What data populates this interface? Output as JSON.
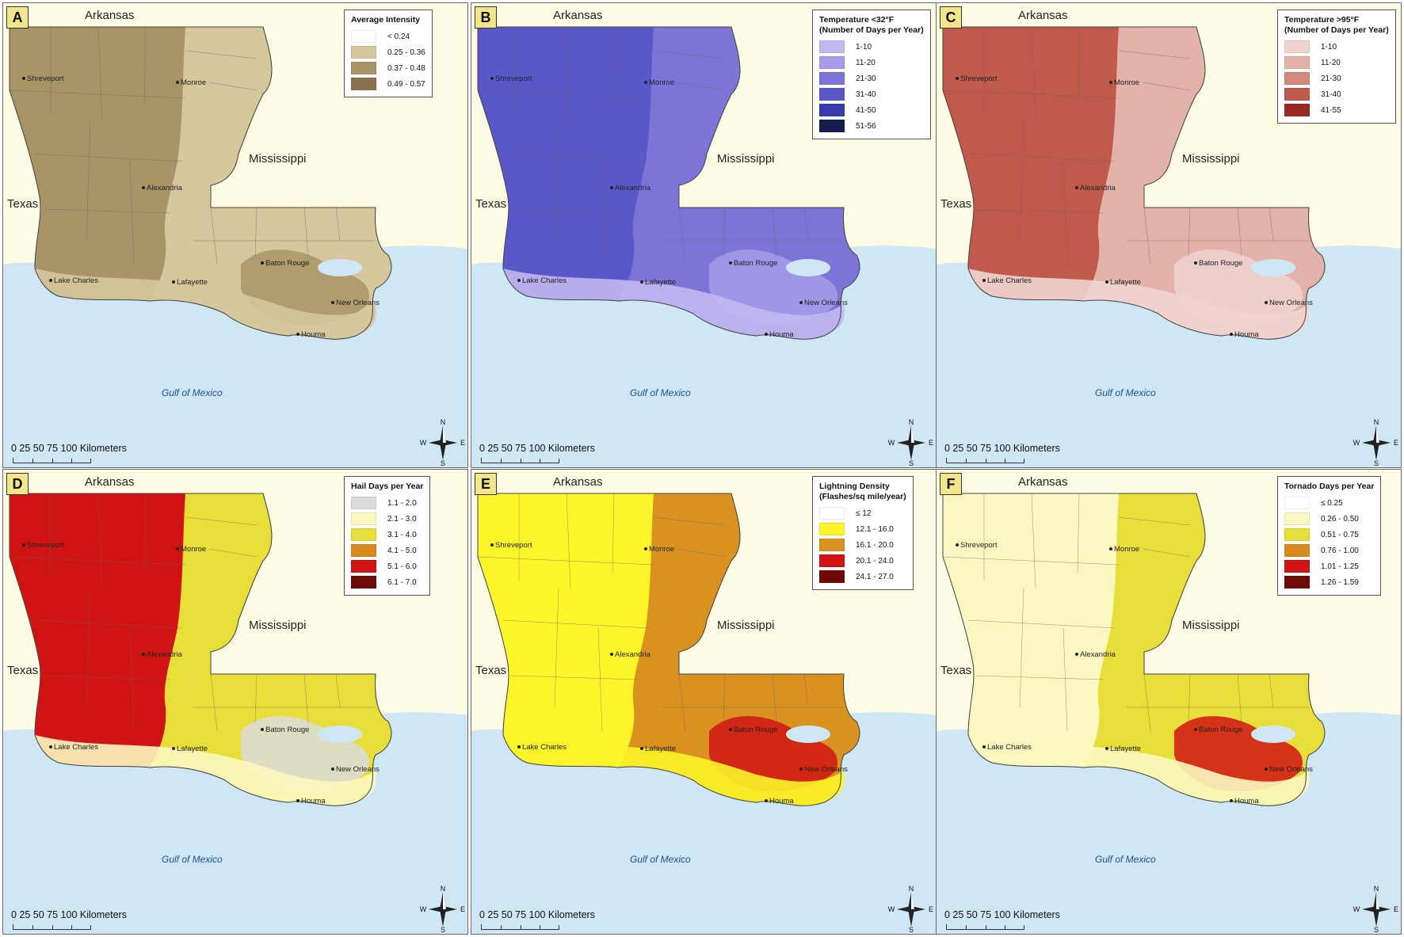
{
  "common": {
    "arkansas": "Arkansas",
    "mississippi": "Mississippi",
    "texas": "Texas",
    "gulf": "Gulf of Mexico",
    "scale_text": "0  25  50  75 100 Kilometers",
    "compass": {
      "n": "N",
      "s": "S",
      "e": "E",
      "w": "W"
    },
    "cities": [
      "Shreveport",
      "Monroe",
      "Alexandria",
      "Lake Charles",
      "Lafayette",
      "Baton Rouge",
      "New Orleans",
      "Houma"
    ]
  },
  "colors": {
    "water": "#cfe6f4",
    "background": "#fdfbe3",
    "label_box": "#f3e58a"
  },
  "panels": [
    {
      "letter": "A",
      "legend": {
        "title": [
          "Average Intensity"
        ],
        "items": [
          {
            "label": "< 0.24",
            "color": "#ffffff"
          },
          {
            "label": "0.25 - 0.36",
            "color": "#d6c79c"
          },
          {
            "label": "0.37 - 0.48",
            "color": "#a89467"
          },
          {
            "label": "0.49 - 0.57",
            "color": "#8a704d"
          }
        ]
      },
      "map_colors": {
        "west": "#a89467",
        "east": "#d6c79c",
        "delta": "#a89467",
        "coast": "#d6c79c"
      }
    },
    {
      "letter": "B",
      "legend": {
        "title": [
          "Temperature <32°F",
          "(Number of Days per Year)"
        ],
        "items": [
          {
            "label": "1-10",
            "color": "#c2b8f2"
          },
          {
            "label": "11-20",
            "color": "#a69cea"
          },
          {
            "label": "21-30",
            "color": "#7d74d8"
          },
          {
            "label": "31-40",
            "color": "#5a57c9"
          },
          {
            "label": "41-50",
            "color": "#3a3aae"
          },
          {
            "label": "51-56",
            "color": "#141d52"
          }
        ]
      },
      "map_colors": {
        "west": "#5a57c9",
        "east": "#7d74d8",
        "delta": "#a69cea",
        "coast": "#c2b8f2"
      }
    },
    {
      "letter": "C",
      "legend": {
        "title": [
          "Temperature >95°F",
          "(Number of Days per Year)"
        ],
        "items": [
          {
            "label": "1-10",
            "color": "#f1d4d2"
          },
          {
            "label": "11-20",
            "color": "#e3b3aa"
          },
          {
            "label": "21-30",
            "color": "#d4887c"
          },
          {
            "label": "31-40",
            "color": "#c05a4c"
          },
          {
            "label": "41-55",
            "color": "#9a2b22"
          }
        ]
      },
      "map_colors": {
        "west": "#c05a4c",
        "east": "#e3b3aa",
        "delta": "#f1d4d2",
        "coast": "#f1d4d2"
      }
    },
    {
      "letter": "D",
      "legend": {
        "title": [
          "Hail Days per Year"
        ],
        "items": [
          {
            "label": "1.1 - 2.0",
            "color": "#dcdcdc"
          },
          {
            "label": "2.1 - 3.0",
            "color": "#fbf7c0"
          },
          {
            "label": "3.1 - 4.0",
            "color": "#e8de3a"
          },
          {
            "label": "4.1 - 5.0",
            "color": "#d98a1f"
          },
          {
            "label": "5.1 - 6.0",
            "color": "#d01414"
          },
          {
            "label": "6.1 - 7.0",
            "color": "#6e0a0a"
          }
        ]
      },
      "map_colors": {
        "west": "#d01414",
        "east": "#e8de3a",
        "delta": "#dcdcdc",
        "coast": "#fbf7c0"
      }
    },
    {
      "letter": "E",
      "legend": {
        "title": [
          "Lightning Density",
          "(Flashes/sq mile/year)"
        ],
        "items": [
          {
            "label": "≤ 12",
            "color": "#ffffff"
          },
          {
            "label": "12.1 - 16.0",
            "color": "#fdf52a"
          },
          {
            "label": "16.1 - 20.0",
            "color": "#d9921f"
          },
          {
            "label": "20.1 - 24.0",
            "color": "#d01414"
          },
          {
            "label": "24.1 - 27.0",
            "color": "#6e0a0a"
          }
        ]
      },
      "map_colors": {
        "west": "#fdf52a",
        "east": "#d9921f",
        "delta": "#d01414",
        "coast": "#fdf52a"
      }
    },
    {
      "letter": "F",
      "legend": {
        "title": [
          "Tornado Days per Year"
        ],
        "items": [
          {
            "label": "≤ 0.25",
            "color": "#ffffff"
          },
          {
            "label": "0.26 - 0.50",
            "color": "#fbf7c0"
          },
          {
            "label": "0.51 - 0.75",
            "color": "#e8de3a"
          },
          {
            "label": "0.76 - 1.00",
            "color": "#d98a1f"
          },
          {
            "label": "1.01 - 1.25",
            "color": "#d01414"
          },
          {
            "label": "1.26 - 1.59",
            "color": "#6e0a0a"
          }
        ]
      },
      "map_colors": {
        "west": "#fbf7c0",
        "east": "#e8de3a",
        "delta": "#d01414",
        "coast": "#fbf7c0"
      }
    }
  ]
}
